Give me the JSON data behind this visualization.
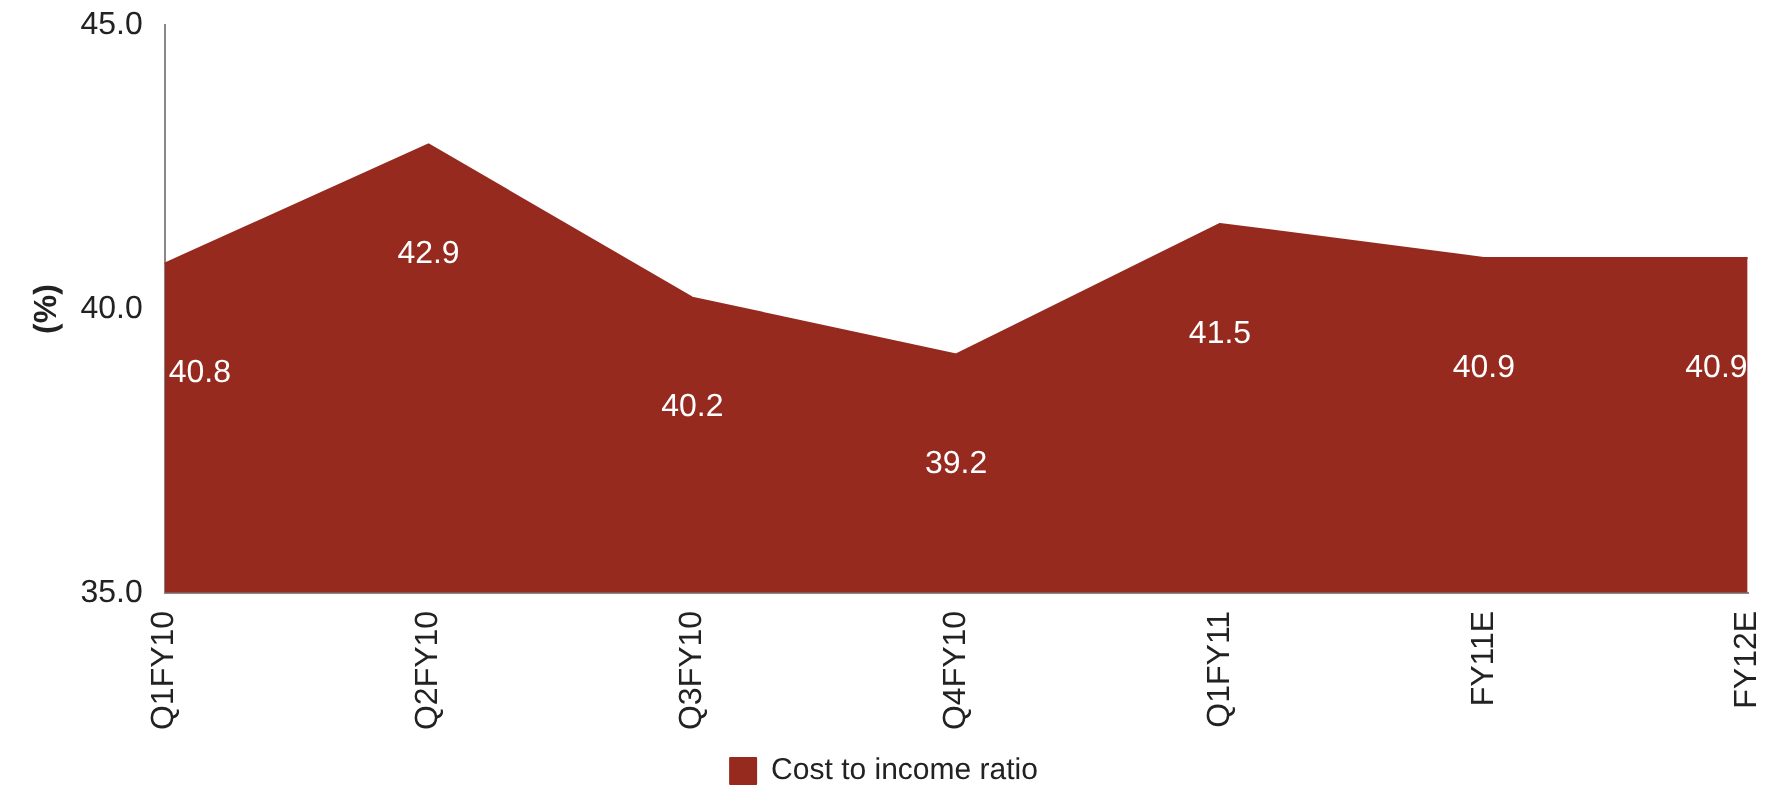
{
  "chart_data": {
    "type": "area",
    "ylabel": "(%)",
    "categories": [
      "Q1FY10",
      "Q2FY10",
      "Q3FY10",
      "Q4FY10",
      "Q1FY11",
      "FY11E",
      "FY12E"
    ],
    "series": [
      {
        "name": "Cost to income ratio",
        "color": "#962a1f",
        "values": [
          40.8,
          42.9,
          40.2,
          39.2,
          41.5,
          40.9,
          40.9
        ]
      }
    ],
    "ylim": [
      35,
      45
    ],
    "yticks": [
      {
        "value": 35,
        "label": "35.0"
      },
      {
        "value": 40,
        "label": "40.0"
      },
      {
        "value": 45,
        "label": "45.0"
      }
    ],
    "grid": false,
    "legend": "bottom",
    "data_labels": true
  }
}
